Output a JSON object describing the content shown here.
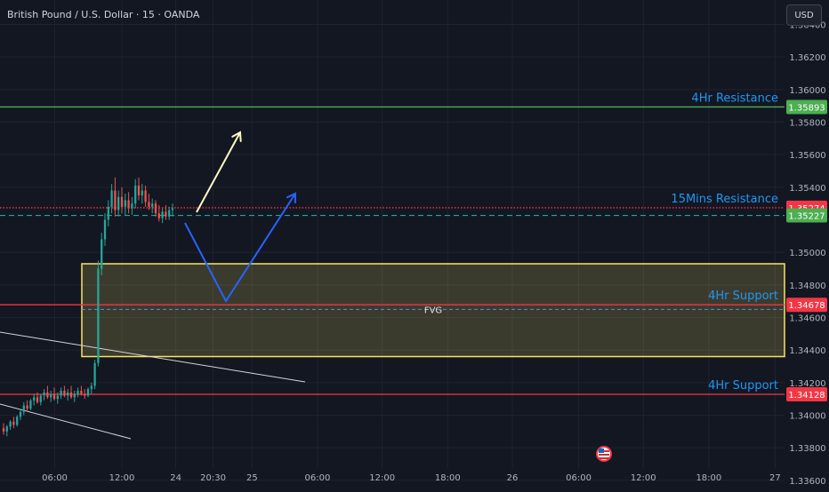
{
  "header": {
    "symbol_title": "British Pound / U.S. Dollar · 15 · OANDA",
    "currency_button": "USD"
  },
  "colors": {
    "background": "#131722",
    "grid": "#1f2330",
    "axis_text": "#b2b5be",
    "up_candle": "#26a69a",
    "down_candle": "#ef5350",
    "resistance_4h": "#4caf50",
    "support_4h": "#f23645",
    "label_blue": "#2196f3",
    "fvg_border": "#f5e663",
    "fvg_fill": "rgba(245,230,99,0.18)",
    "arrow_yellow": "#fff9c4",
    "arrow_blue": "#2962ff"
  },
  "chart_data": {
    "type": "candlestick",
    "yaxis": {
      "min": 1.3355,
      "max": 1.3655,
      "ticks": [
        "1.36400",
        "1.36200",
        "1.36000",
        "1.35800",
        "1.35600",
        "1.35400",
        "1.35000",
        "1.34800",
        "1.34600",
        "1.34400",
        "1.34200",
        "1.34000",
        "1.33800",
        "1.33600"
      ],
      "tick_values": [
        1.364,
        1.362,
        1.36,
        1.358,
        1.356,
        1.354,
        1.35,
        1.348,
        1.346,
        1.344,
        1.342,
        1.34,
        1.338,
        1.336
      ]
    },
    "xaxis": {
      "ticks": [
        "06:00",
        "12:00",
        "24",
        "20:30",
        "25",
        "06:00",
        "12:00",
        "18:00",
        "26",
        "06:00",
        "12:00",
        "18:00",
        "27"
      ],
      "tick_positions": [
        0.066,
        0.147,
        0.212,
        0.257,
        0.304,
        0.383,
        0.461,
        0.54,
        0.618,
        0.698,
        0.776,
        0.855,
        0.935
      ]
    },
    "price_labels": [
      {
        "text": "1.35893",
        "value": 1.35893,
        "color": "#4caf50"
      },
      {
        "text": "1.35274",
        "value": 1.35274,
        "color": "#f23645"
      },
      {
        "text": "1.35227",
        "value": 1.35227,
        "color": "#4caf50"
      },
      {
        "text": "1.34678",
        "value": 1.34678,
        "color": "#f23645"
      },
      {
        "text": "1.34128",
        "value": 1.34128,
        "color": "#f23645"
      }
    ],
    "levels": [
      {
        "name": "4Hr Resistance",
        "value": 1.35893,
        "color": "#4caf50"
      },
      {
        "name": "15Mins Resistance",
        "value": 1.35274,
        "color": "#f23645"
      },
      {
        "name": "4Hr Support",
        "value": 1.34678,
        "color": "#f23645"
      },
      {
        "name": "4Hr Support",
        "value": 1.34128,
        "color": "#f23645"
      }
    ],
    "current_price": 1.35227,
    "fvg_zone": {
      "label": "FVG",
      "top": 1.3493,
      "bottom": 1.3436,
      "mid": 1.3465
    },
    "candles": [
      [
        1.3392,
        1.3395,
        1.3388,
        1.339
      ],
      [
        1.339,
        1.3394,
        1.3387,
        1.3393
      ],
      [
        1.3393,
        1.3397,
        1.3391,
        1.3396
      ],
      [
        1.3396,
        1.3399,
        1.3392,
        1.3394
      ],
      [
        1.3394,
        1.34,
        1.3393,
        1.3399
      ],
      [
        1.3399,
        1.3404,
        1.3397,
        1.3402
      ],
      [
        1.3402,
        1.3408,
        1.34,
        1.3406
      ],
      [
        1.3406,
        1.3409,
        1.3402,
        1.3404
      ],
      [
        1.3404,
        1.341,
        1.3403,
        1.3409
      ],
      [
        1.3409,
        1.3413,
        1.3406,
        1.3411
      ],
      [
        1.3411,
        1.3414,
        1.3407,
        1.3408
      ],
      [
        1.3408,
        1.3413,
        1.3406,
        1.3412
      ],
      [
        1.3412,
        1.3416,
        1.3409,
        1.3414
      ],
      [
        1.3414,
        1.3418,
        1.341,
        1.3411
      ],
      [
        1.3411,
        1.3415,
        1.3408,
        1.3413
      ],
      [
        1.3413,
        1.3417,
        1.3409,
        1.341
      ],
      [
        1.341,
        1.3414,
        1.3407,
        1.3412
      ],
      [
        1.3412,
        1.3417,
        1.341,
        1.3415
      ],
      [
        1.3415,
        1.3418,
        1.3411,
        1.3412
      ],
      [
        1.3412,
        1.3416,
        1.3409,
        1.3414
      ],
      [
        1.3414,
        1.3418,
        1.341,
        1.3411
      ],
      [
        1.3411,
        1.3415,
        1.3408,
        1.3413
      ],
      [
        1.3413,
        1.3417,
        1.3411,
        1.3415
      ],
      [
        1.3415,
        1.3418,
        1.3412,
        1.3413
      ],
      [
        1.3413,
        1.3416,
        1.341,
        1.3412
      ],
      [
        1.3412,
        1.3417,
        1.3411,
        1.3416
      ],
      [
        1.3416,
        1.342,
        1.3413,
        1.3418
      ],
      [
        1.3418,
        1.3434,
        1.3416,
        1.3432
      ],
      [
        1.3432,
        1.3495,
        1.343,
        1.349
      ],
      [
        1.349,
        1.3512,
        1.3486,
        1.3508
      ],
      [
        1.3508,
        1.3524,
        1.3504,
        1.352
      ],
      [
        1.352,
        1.3532,
        1.3516,
        1.3528
      ],
      [
        1.3528,
        1.3542,
        1.3524,
        1.3538
      ],
      [
        1.3538,
        1.3546,
        1.3522,
        1.3526
      ],
      [
        1.3526,
        1.3538,
        1.3522,
        1.3534
      ],
      [
        1.3534,
        1.354,
        1.3524,
        1.3528
      ],
      [
        1.3528,
        1.3536,
        1.3523,
        1.3532
      ],
      [
        1.3532,
        1.3537,
        1.3524,
        1.3527
      ],
      [
        1.3527,
        1.3534,
        1.3523,
        1.353
      ],
      [
        1.353,
        1.3545,
        1.3527,
        1.3541
      ],
      [
        1.3541,
        1.3546,
        1.3532,
        1.3535
      ],
      [
        1.3535,
        1.3542,
        1.353,
        1.3538
      ],
      [
        1.3538,
        1.3541,
        1.3528,
        1.3531
      ],
      [
        1.3531,
        1.3536,
        1.3526,
        1.3528
      ],
      [
        1.3528,
        1.3533,
        1.3524,
        1.353
      ],
      [
        1.353,
        1.3532,
        1.3522,
        1.3524
      ],
      [
        1.3524,
        1.3529,
        1.3519,
        1.3521
      ],
      [
        1.3521,
        1.3527,
        1.3518,
        1.3525
      ],
      [
        1.3525,
        1.3529,
        1.352,
        1.3522
      ],
      [
        1.3522,
        1.3528,
        1.352,
        1.3526
      ],
      [
        1.3526,
        1.353,
        1.3522,
        1.3527
      ]
    ]
  }
}
